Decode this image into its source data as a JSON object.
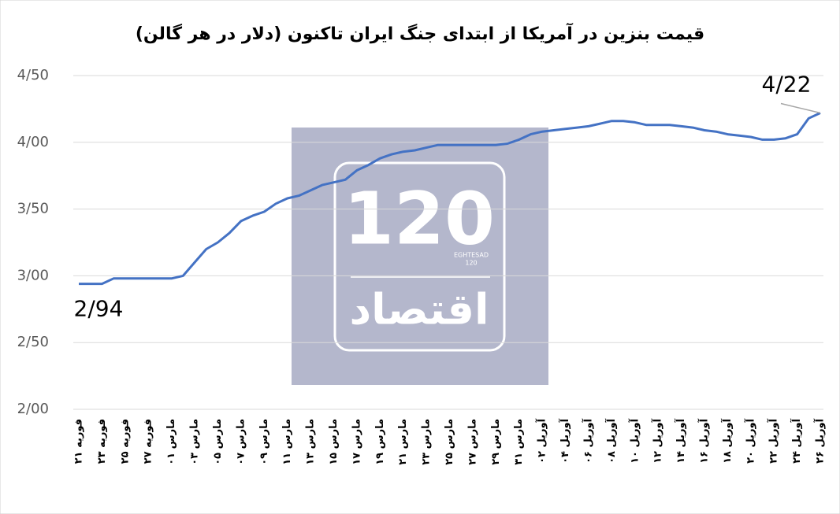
{
  "chart_data": {
    "type": "line",
    "title": "قیمت بنزین در آمریکا از ابتدای جنگ ایران تاکنون (دلار در هر گالن)",
    "categories": [
      "۲۱ فوریه",
      null,
      "۲۳ فوریه",
      null,
      "۲۵ فوریه",
      null,
      "۲۷ فوریه",
      null,
      "۰۱ مارس",
      null,
      "۰۳ مارس",
      null,
      "۰۵ مارس",
      null,
      "۰۷ مارس",
      null,
      "۰۹ مارس",
      null,
      "۱۱ مارس",
      null,
      "۱۳ مارس",
      null,
      "۱۵ مارس",
      null,
      "۱۷ مارس",
      null,
      "۱۹ مارس",
      null,
      "۲۱ مارس",
      null,
      "۲۳ مارس",
      null,
      "۲۵ مارس",
      null,
      "۲۷ مارس",
      null,
      "۲۹ مارس",
      null,
      "۳۱ مارس",
      null,
      "۰۲ آوریل",
      null,
      "۰۴ آوریل",
      null,
      "۰۶ آوریل",
      null,
      "۰۸ آوریل",
      null,
      "۱۰ آوریل",
      null,
      "۱۲ آوریل",
      null,
      "۱۴ آوریل",
      null,
      "۱۶ آوریل",
      null,
      "۱۸ آوریل",
      null,
      "۲۰ آوریل",
      null,
      "۲۲ آوریل",
      null,
      "۲۴ آوریل",
      null,
      "۲۶ آوریل"
    ],
    "series": [
      {
        "name": null,
        "color": "#4472c4",
        "values": [
          2.94,
          2.94,
          2.94,
          2.98,
          2.98,
          2.98,
          2.98,
          2.98,
          2.98,
          3.0,
          3.1,
          3.2,
          3.25,
          3.32,
          3.41,
          3.45,
          3.48,
          3.54,
          3.58,
          3.6,
          3.64,
          3.68,
          3.7,
          3.72,
          3.79,
          3.83,
          3.88,
          3.91,
          3.93,
          3.94,
          3.96,
          3.98,
          3.98,
          3.98,
          3.98,
          3.98,
          3.98,
          3.99,
          4.02,
          4.06,
          4.08,
          4.09,
          4.1,
          4.11,
          4.12,
          4.14,
          4.16,
          4.16,
          4.15,
          4.13,
          4.13,
          4.13,
          4.12,
          4.11,
          4.09,
          4.08,
          4.06,
          4.05,
          4.04,
          4.02,
          4.02,
          4.03,
          4.06,
          4.18,
          4.22
        ],
        "value_labels": [
          "2/94",
          null,
          null,
          null,
          null,
          null,
          null,
          null,
          null,
          null,
          null,
          null,
          null,
          null,
          null,
          null,
          null,
          null,
          null,
          null,
          null,
          null,
          null,
          null,
          null,
          null,
          null,
          null,
          null,
          null,
          null,
          null,
          null,
          null,
          null,
          null,
          null,
          null,
          null,
          null,
          null,
          null,
          null,
          null,
          null,
          null,
          null,
          null,
          null,
          null,
          null,
          null,
          null,
          null,
          null,
          null,
          null,
          null,
          null,
          null,
          null,
          null,
          null,
          null,
          "4/22"
        ]
      }
    ],
    "ylim": [
      2,
      4.5
    ],
    "yticks": [
      {
        "value": 2,
        "label": "2/00"
      },
      {
        "value": 2.5,
        "label": "2/50"
      },
      {
        "value": 3,
        "label": "3/00"
      },
      {
        "value": 3.5,
        "label": "3/50"
      },
      {
        "value": 4,
        "label": "4/00"
      },
      {
        "value": 4.5,
        "label": "4/50"
      }
    ],
    "grid": true,
    "watermark": [
      "120",
      "EGHTESAD",
      "120",
      "اقتصاد"
    ]
  }
}
